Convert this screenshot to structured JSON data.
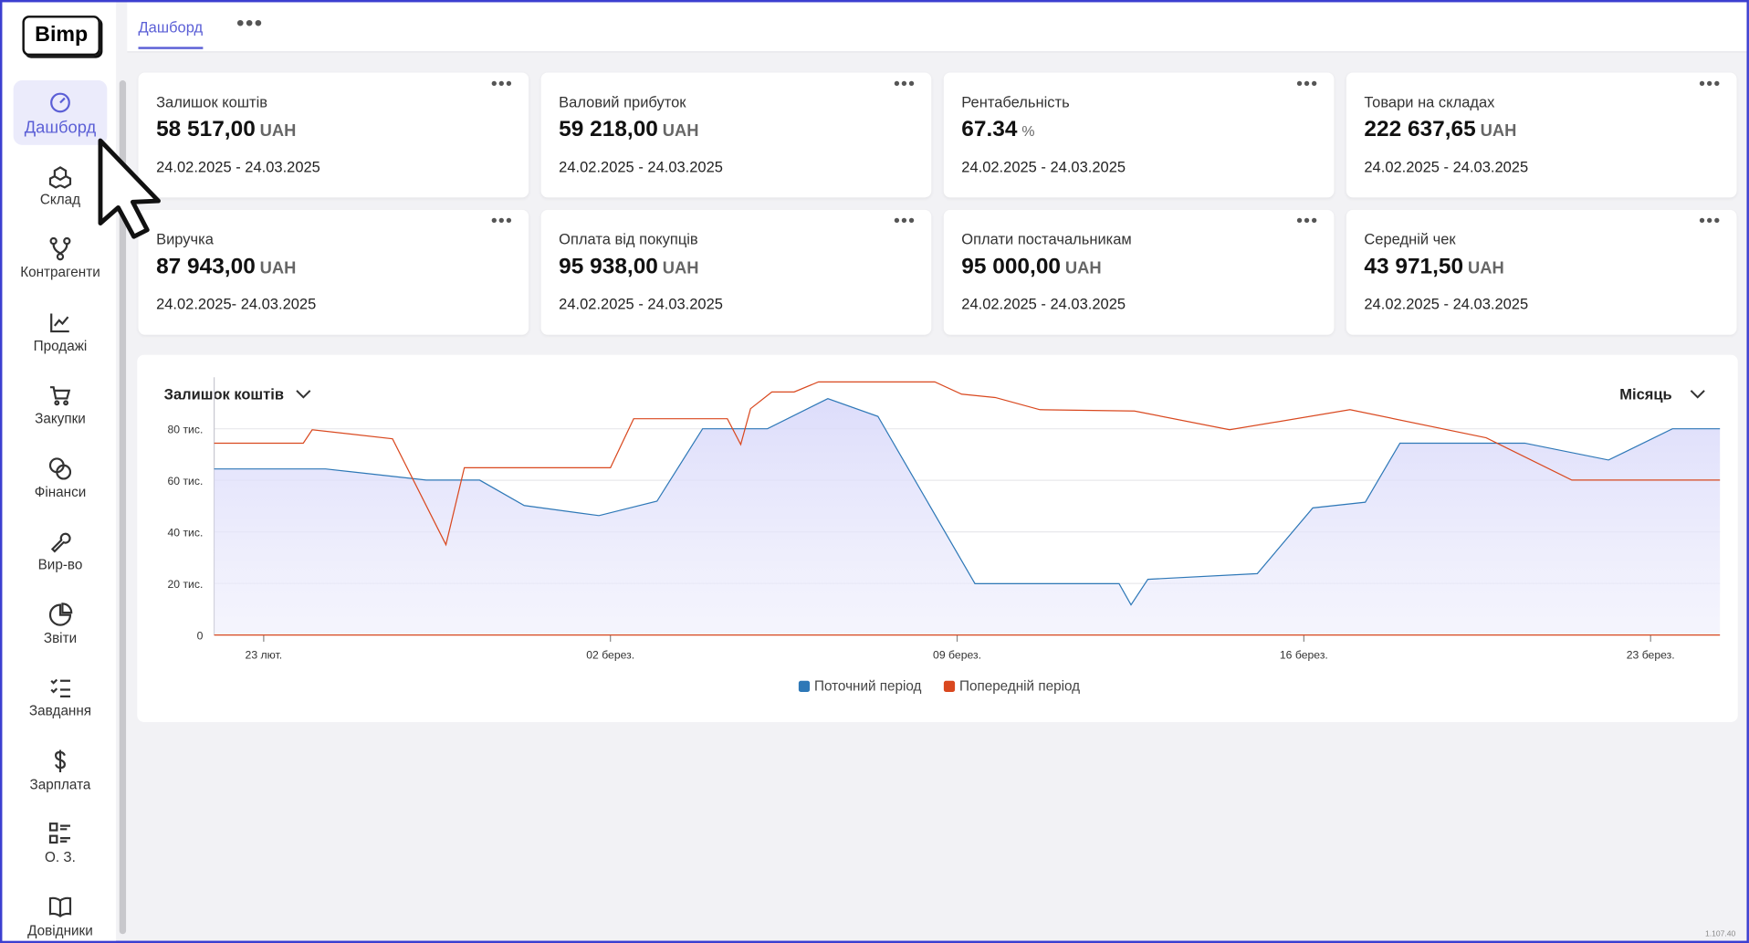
{
  "logo": "Bimp",
  "tabs": {
    "active": "Дашборд"
  },
  "sidebar": [
    {
      "label": "Дашборд"
    },
    {
      "label": "Склад"
    },
    {
      "label": "Контрагенти"
    },
    {
      "label": "Продажі"
    },
    {
      "label": "Закупки"
    },
    {
      "label": "Фінанси"
    },
    {
      "label": "Вир-во"
    },
    {
      "label": "Звіти"
    },
    {
      "label": "Завдання"
    },
    {
      "label": "Зарплата"
    },
    {
      "label": "О. З."
    },
    {
      "label": "Довідники"
    }
  ],
  "cards": [
    {
      "title": "Залишок коштів",
      "value": "58 517,00",
      "unit": "UAH",
      "period": "24.02.2025 - 24.03.2025"
    },
    {
      "title": "Валовий прибуток",
      "value": "59 218,00",
      "unit": "UAH",
      "period": "24.02.2025 - 24.03.2025"
    },
    {
      "title": "Рентабельність",
      "value": "67.34",
      "unit": "%",
      "period": "24.02.2025 - 24.03.2025"
    },
    {
      "title": "Товари на складах",
      "value": "222 637,65",
      "unit": "UAH",
      "period": "24.02.2025 - 24.03.2025"
    },
    {
      "title": "Виручка",
      "value": "87 943,00",
      "unit": "UAH",
      "period": "24.02.2025- 24.03.2025"
    },
    {
      "title": "Оплата від покупців",
      "value": "95 938,00",
      "unit": "UAH",
      "period": "24.02.2025 - 24.03.2025"
    },
    {
      "title": "Оплати постачальникам",
      "value": "95 000,00",
      "unit": "UAH",
      "period": "24.02.2025 - 24.03.2025"
    },
    {
      "title": "Середній чек",
      "value": "43 971,50",
      "unit": "UAH",
      "period": "24.02.2025 - 24.03.2025"
    }
  ],
  "version": "1.107.40",
  "chart_data": {
    "type": "line",
    "metric_selector": "Залишок коштів",
    "period_selector": "Місяць",
    "xlim": [
      0,
      30.4
    ],
    "xticks": [
      {
        "value": 1,
        "label": "23 лют."
      },
      {
        "value": 8,
        "label": "02 берез."
      },
      {
        "value": 15,
        "label": "09 берез."
      },
      {
        "value": 22,
        "label": "16 берез."
      },
      {
        "value": 29,
        "label": "23 берез."
      }
    ],
    "ylim": [
      0,
      100000
    ],
    "yticks": [
      0,
      {
        "value": 20000,
        "label": "20 тис."
      },
      {
        "value": 40000,
        "label": "40 тис."
      },
      {
        "value": 60000,
        "label": "60 тис."
      },
      {
        "value": 80000,
        "label": "80 тис."
      }
    ],
    "grid": true,
    "series": [
      {
        "name": "Поточний період",
        "color": "#2e78b7",
        "area": true,
        "x": [
          0,
          2.25,
          4.28,
          5.36,
          6.26,
          7.77,
          8.94,
          9.86,
          11.17,
          12.39,
          13.4,
          15.36,
          18.27,
          18.51,
          18.85,
          21.06,
          22.18,
          23.24,
          23.94,
          26.46,
          28.15,
          29.44,
          30.4
        ],
        "values": [
          64400,
          64400,
          60100,
          60100,
          50200,
          46300,
          51900,
          80000,
          80000,
          91700,
          84800,
          19900,
          19900,
          11700,
          21600,
          23800,
          49300,
          51500,
          74400,
          74400,
          67900,
          80000,
          80000
        ]
      },
      {
        "name": "Попередній період",
        "color": "#d9481f",
        "area": false,
        "x": [
          0,
          1.8,
          1.98,
          3.6,
          4.68,
          5.05,
          8.0,
          8.47,
          10.36,
          10.63,
          10.83,
          11.26,
          11.71,
          12.2,
          14.55,
          15.09,
          15.77,
          16.67,
          18.58,
          20.5,
          22.93,
          25.68,
          27.41,
          30.4
        ],
        "values": [
          74400,
          74400,
          79600,
          76100,
          35000,
          64900,
          64900,
          83900,
          83900,
          73900,
          87800,
          94300,
          94300,
          98200,
          98200,
          93400,
          92100,
          87400,
          86900,
          79600,
          87400,
          76500,
          60100,
          60100
        ]
      }
    ]
  }
}
